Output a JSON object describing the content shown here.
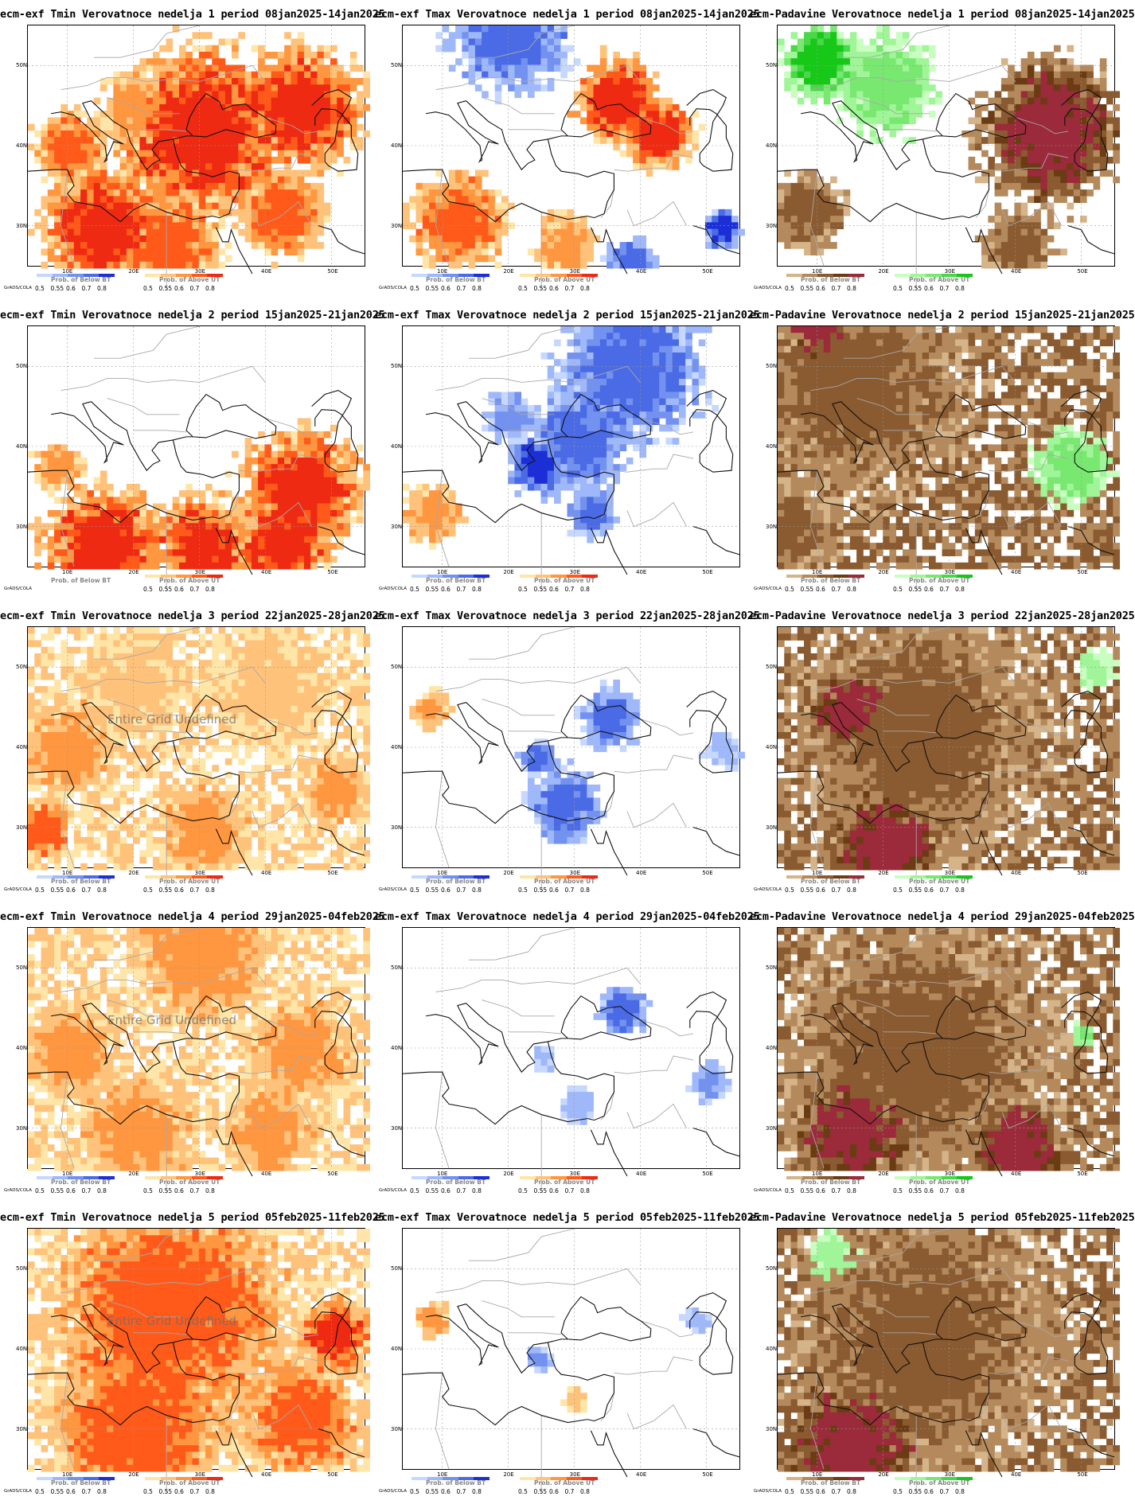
{
  "panels": [
    {
      "title": "ecm-exf Tmin Verovatnoce nedelja 1 period 08jan2025-14jan2025",
      "var": "tmin",
      "week": 1,
      "undefined_text": "",
      "left_bar": {
        "title": "Prob. of Below BT",
        "kind": "blue"
      },
      "right_bar": {
        "title": "Prob. of Above UT",
        "kind": "red"
      },
      "credit": "GrADS/COLA"
    },
    {
      "title": "ecm-exf Tmax Verovatnoce nedelja 1 period 08jan2025-14jan2025",
      "var": "tmax",
      "week": 1,
      "undefined_text": "",
      "left_bar": {
        "title": "Prob. of Below BT",
        "kind": "blue"
      },
      "right_bar": {
        "title": "Prob. of Above UT",
        "kind": "red"
      },
      "credit": "GrADS/COLA"
    },
    {
      "title": "ecm-Padavine Verovatnoce nedelja 1 period 08jan2025-14jan2025",
      "var": "prec",
      "week": 1,
      "undefined_text": "",
      "left_bar": {
        "title": "Prob. of Below BT",
        "kind": "brown"
      },
      "right_bar": {
        "title": "Prob. of Above UT",
        "kind": "green"
      },
      "credit": "GrADS/COLA"
    },
    {
      "title": "ecm-exf Tmin Verovatnoce nedelja 2 period 15jan2025-21jan2025",
      "var": "tmin",
      "week": 2,
      "undefined_text": "",
      "left_bar": {
        "title": "Prob. of Below BT",
        "kind": "none"
      },
      "right_bar": {
        "title": "Prob. of Above UT",
        "kind": "red"
      },
      "credit": "GrADS/COLA"
    },
    {
      "title": "ecm-exf Tmax Verovatnoce nedelja 2 period 15jan2025-21jan2025",
      "var": "tmax",
      "week": 2,
      "undefined_text": "",
      "left_bar": {
        "title": "Prob. of Below BT",
        "kind": "blue"
      },
      "right_bar": {
        "title": "Prob. of Above UT",
        "kind": "red"
      },
      "credit": "GrADS/COLA"
    },
    {
      "title": "ecm-Padavine Verovatnoce nedelja 2 period 15jan2025-21jan2025",
      "var": "prec",
      "week": 2,
      "undefined_text": "",
      "left_bar": {
        "title": "Prob. of Below BT",
        "kind": "brown"
      },
      "right_bar": {
        "title": "Prob. of Above UT",
        "kind": "green"
      },
      "credit": "GrADS/COLA"
    },
    {
      "title": "ecm-exf Tmin Verovatnoce nedelja 3 period 22jan2025-28jan2025",
      "var": "tmin",
      "week": 3,
      "undefined_text": "Entire Grid Undefined",
      "left_bar": {
        "title": "Prob. of Below BT",
        "kind": "blue"
      },
      "right_bar": {
        "title": "Prob. of Above UT",
        "kind": "red"
      },
      "credit": "GrADS/COLA"
    },
    {
      "title": "ecm-exf Tmax Verovatnoce nedelja 3 period 22jan2025-28jan2025",
      "var": "tmax",
      "week": 3,
      "undefined_text": "",
      "left_bar": {
        "title": "Prob. of Below BT",
        "kind": "blue"
      },
      "right_bar": {
        "title": "Prob. of Above UT",
        "kind": "red"
      },
      "credit": "GrADS/COLA"
    },
    {
      "title": "ecm-Padavine Verovatnoce nedelja 3 period 22jan2025-28jan2025",
      "var": "prec",
      "week": 3,
      "undefined_text": "",
      "left_bar": {
        "title": "Prob. of Below BT",
        "kind": "brown"
      },
      "right_bar": {
        "title": "Prob. of Above UT",
        "kind": "green"
      },
      "credit": "GrADS/COLA"
    },
    {
      "title": "ecm-exf Tmin Verovatnoce nedelja 4 period 29jan2025-04feb2025",
      "var": "tmin",
      "week": 4,
      "undefined_text": "Entire Grid Undefined",
      "left_bar": {
        "title": "Prob. of Below BT",
        "kind": "blue"
      },
      "right_bar": {
        "title": "Prob. of Above UT",
        "kind": "red"
      },
      "credit": "GrADS/COLA"
    },
    {
      "title": "ecm-exf Tmax Verovatnoce nedelja 4 period 29jan2025-04feb2025",
      "var": "tmax",
      "week": 4,
      "undefined_text": "",
      "left_bar": {
        "title": "Prob. of Below BT",
        "kind": "blue"
      },
      "right_bar": {
        "title": "Prob. of Above UT",
        "kind": "red"
      },
      "credit": "GrADS/COLA"
    },
    {
      "title": "ecm-Padavine Verovatnoce nedelja 4 period 29jan2025-04feb2025",
      "var": "prec",
      "week": 4,
      "undefined_text": "",
      "left_bar": {
        "title": "Prob. of Below BT",
        "kind": "brown"
      },
      "right_bar": {
        "title": "Prob. of Above UT",
        "kind": "green"
      },
      "credit": "GrADS/COLA"
    },
    {
      "title": "ecm-exf Tmin Verovatnoce nedelja 5 period 05feb2025-11feb2025",
      "var": "tmin",
      "week": 5,
      "undefined_text": "Entire Grid Undefined",
      "left_bar": {
        "title": "Prob. of Below BT",
        "kind": "blue"
      },
      "right_bar": {
        "title": "Prob. of Above UT",
        "kind": "red"
      },
      "credit": "GrADS/COLA"
    },
    {
      "title": "ecm-exf Tmax Verovatnoce nedelja 5 period 05feb2025-11feb2025",
      "var": "tmax",
      "week": 5,
      "undefined_text": "",
      "left_bar": {
        "title": "Prob. of Below BT",
        "kind": "blue"
      },
      "right_bar": {
        "title": "Prob. of Above UT",
        "kind": "red"
      },
      "credit": "GrADS/COLA"
    },
    {
      "title": "ecm-Padavine Verovatnoce nedelja 5 period 05feb2025-11feb2025",
      "var": "prec",
      "week": 5,
      "undefined_text": "",
      "left_bar": {
        "title": "Prob. of Below BT",
        "kind": "brown"
      },
      "right_bar": {
        "title": "Prob. of Above UT",
        "kind": "green"
      },
      "credit": "GrADS/COLA"
    }
  ],
  "lat_labels": [
    "50N",
    "40N",
    "30N"
  ],
  "lon_labels": [
    "10E",
    "20E",
    "30E",
    "40E",
    "50E"
  ],
  "colorbar_ticks": [
    "0.5",
    "0.55",
    "0.6",
    "0.7",
    "0.8"
  ],
  "palettes": {
    "blue": [
      "#c6d8ff",
      "#9fb8fa",
      "#7392f0",
      "#4a6ae6",
      "#1c2fd6"
    ],
    "red": [
      "#ffe6a8",
      "#ffc27a",
      "#ff9640",
      "#ff5a1a",
      "#ee2a12"
    ],
    "brown": [
      "#d6b48a",
      "#b48a5c",
      "#8a5a30",
      "#6b3b14",
      "#9b2a3a"
    ],
    "green": [
      "#c8ffc0",
      "#a0f598",
      "#78e870",
      "#48d848",
      "#18c818"
    ],
    "none": []
  }
}
